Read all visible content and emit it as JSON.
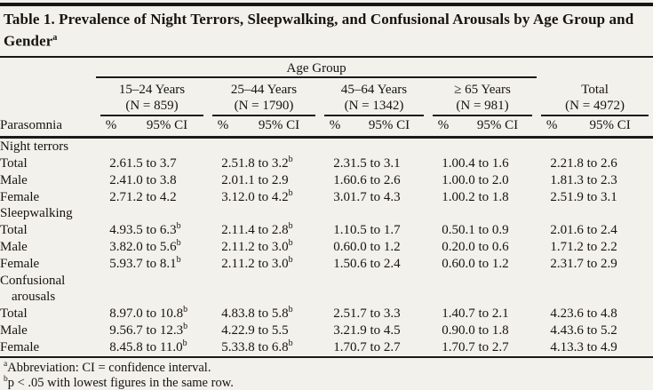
{
  "header": {
    "title": "Table 1. Prevalence of Night Terrors, Sleepwalking, and Confusional Arousals by Age Group and Gender",
    "title_sup": "a"
  },
  "table": {
    "age_group_label": "Age Group",
    "parasomnia_label": "Parasomnia",
    "subheaders": {
      "pct": "%",
      "ci": "95% CI"
    },
    "groups": [
      {
        "range": "15–24 Years",
        "n": "(N = 859)",
        "in_age_group": true
      },
      {
        "range": "25–44 Years",
        "n": "(N = 1790)",
        "in_age_group": true
      },
      {
        "range": "45–64 Years",
        "n": "(N = 1342)",
        "in_age_group": true
      },
      {
        "range": "≥ 65 Years",
        "n": "(N = 981)",
        "in_age_group": true
      },
      {
        "range": "Total",
        "n": "(N = 4972)",
        "in_age_group": false
      }
    ],
    "sections": [
      {
        "label": "Night terrors",
        "rows": [
          {
            "label": "Total",
            "cells": [
              {
                "pct": "2.6",
                "ci": "1.5 to 3.7",
                "sup": ""
              },
              {
                "pct": "2.5",
                "ci": "1.8 to 3.2",
                "sup": "b"
              },
              {
                "pct": "2.3",
                "ci": "1.5 to 3.1",
                "sup": ""
              },
              {
                "pct": "1.0",
                "ci": "0.4 to 1.6",
                "sup": ""
              },
              {
                "pct": "2.2",
                "ci": "1.8 to 2.6",
                "sup": ""
              }
            ]
          },
          {
            "label": "Male",
            "cells": [
              {
                "pct": "2.4",
                "ci": "1.0 to 3.8",
                "sup": ""
              },
              {
                "pct": "2.0",
                "ci": "1.1 to 2.9",
                "sup": ""
              },
              {
                "pct": "1.6",
                "ci": "0.6 to 2.6",
                "sup": ""
              },
              {
                "pct": "1.0",
                "ci": "0.0 to 2.0",
                "sup": ""
              },
              {
                "pct": "1.8",
                "ci": "1.3 to 2.3",
                "sup": ""
              }
            ]
          },
          {
            "label": "Female",
            "cells": [
              {
                "pct": "2.7",
                "ci": "1.2 to 4.2",
                "sup": ""
              },
              {
                "pct": "3.1",
                "ci": "2.0 to 4.2",
                "sup": "b"
              },
              {
                "pct": "3.0",
                "ci": "1.7 to 4.3",
                "sup": ""
              },
              {
                "pct": "1.0",
                "ci": "0.2 to 1.8",
                "sup": ""
              },
              {
                "pct": "2.5",
                "ci": "1.9 to 3.1",
                "sup": ""
              }
            ]
          }
        ]
      },
      {
        "label": "Sleepwalking",
        "rows": [
          {
            "label": "Total",
            "cells": [
              {
                "pct": "4.9",
                "ci": "3.5 to 6.3",
                "sup": "b"
              },
              {
                "pct": "2.1",
                "ci": "1.4 to 2.8",
                "sup": "b"
              },
              {
                "pct": "1.1",
                "ci": "0.5 to 1.7",
                "sup": ""
              },
              {
                "pct": "0.5",
                "ci": "0.1 to 0.9",
                "sup": ""
              },
              {
                "pct": "2.0",
                "ci": "1.6 to 2.4",
                "sup": ""
              }
            ]
          },
          {
            "label": "Male",
            "cells": [
              {
                "pct": "3.8",
                "ci": "2.0 to 5.6",
                "sup": "b"
              },
              {
                "pct": "2.1",
                "ci": "1.2 to 3.0",
                "sup": "b"
              },
              {
                "pct": "0.6",
                "ci": "0.0 to 1.2",
                "sup": ""
              },
              {
                "pct": "0.2",
                "ci": "0.0 to 0.6",
                "sup": ""
              },
              {
                "pct": "1.7",
                "ci": "1.2 to 2.2",
                "sup": ""
              }
            ]
          },
          {
            "label": "Female",
            "cells": [
              {
                "pct": "5.9",
                "ci": "3.7 to 8.1",
                "sup": "b"
              },
              {
                "pct": "2.1",
                "ci": "1.2 to 3.0",
                "sup": "b"
              },
              {
                "pct": "1.5",
                "ci": "0.6 to 2.4",
                "sup": ""
              },
              {
                "pct": "0.6",
                "ci": "0.0 to 1.2",
                "sup": ""
              },
              {
                "pct": "2.3",
                "ci": "1.7 to 2.9",
                "sup": ""
              }
            ]
          }
        ]
      },
      {
        "label": "Confusional arousals",
        "rows": [
          {
            "label": "Total",
            "cells": [
              {
                "pct": "8.9",
                "ci": "7.0 to 10.8",
                "sup": "b"
              },
              {
                "pct": "4.8",
                "ci": "3.8 to 5.8",
                "sup": "b"
              },
              {
                "pct": "2.5",
                "ci": "1.7 to 3.3",
                "sup": ""
              },
              {
                "pct": "1.4",
                "ci": "0.7 to 2.1",
                "sup": ""
              },
              {
                "pct": "4.2",
                "ci": "3.6 to 4.8",
                "sup": ""
              }
            ]
          },
          {
            "label": "Male",
            "cells": [
              {
                "pct": "9.5",
                "ci": "6.7 to 12.3",
                "sup": "b"
              },
              {
                "pct": "4.2",
                "ci": "2.9 to 5.5",
                "sup": ""
              },
              {
                "pct": "3.2",
                "ci": "1.9 to 4.5",
                "sup": ""
              },
              {
                "pct": "0.9",
                "ci": "0.0 to 1.8",
                "sup": ""
              },
              {
                "pct": "4.4",
                "ci": "3.6 to 5.2",
                "sup": ""
              }
            ]
          },
          {
            "label": "Female",
            "cells": [
              {
                "pct": "8.4",
                "ci": "5.8 to 11.0",
                "sup": "b"
              },
              {
                "pct": "5.3",
                "ci": "3.8 to 6.8",
                "sup": "b"
              },
              {
                "pct": "1.7",
                "ci": "0.7 to 2.7",
                "sup": ""
              },
              {
                "pct": "1.7",
                "ci": "0.7 to 2.7",
                "sup": ""
              },
              {
                "pct": "4.1",
                "ci": "3.3 to 4.9",
                "sup": ""
              }
            ]
          }
        ]
      }
    ]
  },
  "footnotes": [
    {
      "sup": "a",
      "text": "Abbreviation: CI = confidence interval."
    },
    {
      "sup": "b",
      "text": "p < .05 with lowest figures in the same row."
    }
  ]
}
